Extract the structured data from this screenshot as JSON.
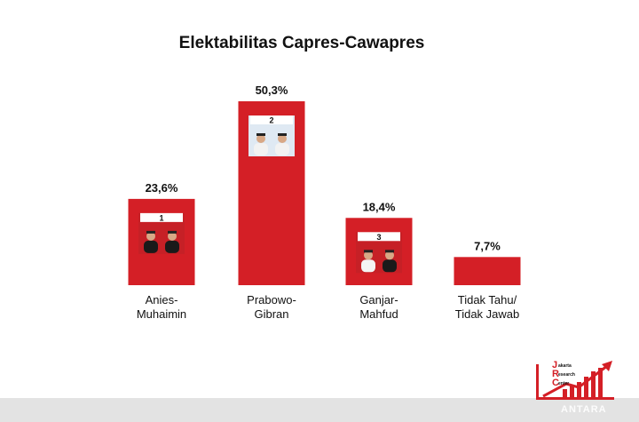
{
  "chart_data": {
    "type": "bar",
    "title": "Elektabilitas Capres-Cawapres",
    "categories": [
      [
        "Anies-",
        "Muhaimin"
      ],
      [
        "Prabowo-",
        "Gibran"
      ],
      [
        "Ganjar-",
        "Mahfud"
      ],
      [
        "Tidak Tahu/",
        "Tidak Jawab"
      ]
    ],
    "values": [
      23.6,
      50.3,
      18.4,
      7.7
    ],
    "value_labels": [
      "23,6%",
      "50,3%",
      "18,4%",
      "7,7%"
    ],
    "candidate_numbers": [
      "1",
      "2",
      "3",
      ""
    ],
    "ylim": [
      0,
      50.3
    ],
    "grid": false,
    "bar_color": "#d41f26"
  },
  "logo": {
    "letters": [
      "J",
      "R",
      "C"
    ],
    "words": [
      "akarta",
      "esearch",
      "enter"
    ]
  },
  "watermark": "ANTARA",
  "colors": {
    "accent": "#d41f26",
    "background": "#ffffff"
  }
}
